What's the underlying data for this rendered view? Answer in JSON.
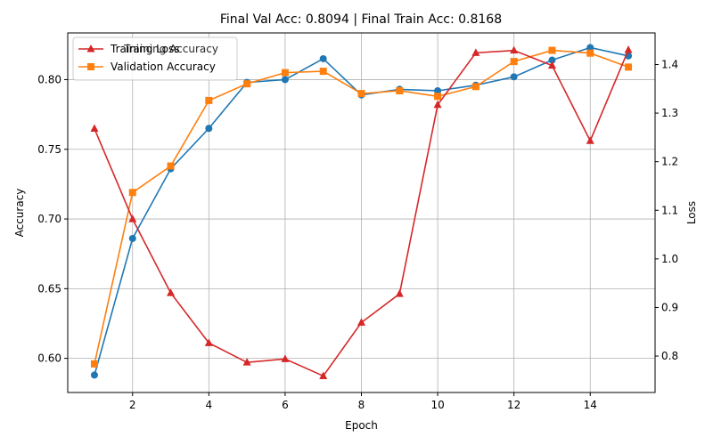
{
  "chart_data": {
    "type": "line",
    "title": "Final Val Acc: 0.8094 | Final Train Acc: 0.8168",
    "xlabel": "Epoch",
    "ylabel_left": "Accuracy",
    "ylabel_right": "Loss",
    "x": [
      1,
      2,
      3,
      4,
      5,
      6,
      7,
      8,
      9,
      10,
      11,
      12,
      13,
      14,
      15
    ],
    "xlim": [
      0.3,
      15.7
    ],
    "xticks": [
      2,
      4,
      6,
      8,
      10,
      12,
      14
    ],
    "ylim_left": [
      0.5755,
      0.8335
    ],
    "yticks_left": [
      0.6,
      0.65,
      0.7,
      0.75,
      0.8
    ],
    "ylim_right": [
      0.725,
      1.465
    ],
    "yticks_right": [
      0.8,
      0.9,
      1.0,
      1.1,
      1.2,
      1.3,
      1.4
    ],
    "grid": true,
    "legend_position": "top-left",
    "series": [
      {
        "name": "Training Accuracy",
        "axis": "left",
        "color": "#1f77b4",
        "marker": "circle",
        "values": [
          0.588,
          0.686,
          0.736,
          0.765,
          0.798,
          0.8,
          0.815,
          0.789,
          0.793,
          0.792,
          0.796,
          0.802,
          0.814,
          0.823,
          0.817
        ]
      },
      {
        "name": "Validation Accuracy",
        "axis": "left",
        "color": "#ff7f0e",
        "marker": "square",
        "values": [
          0.596,
          0.719,
          0.738,
          0.785,
          0.797,
          0.805,
          0.806,
          0.79,
          0.792,
          0.788,
          0.795,
          0.813,
          0.821,
          0.819,
          0.809
        ]
      },
      {
        "name": "Training Loss",
        "axis": "right",
        "color": "#d62728",
        "marker": "triangle",
        "values": [
          1.268,
          1.082,
          0.93,
          0.827,
          0.787,
          0.794,
          0.759,
          0.869,
          0.928,
          1.317,
          1.424,
          1.429,
          1.398,
          1.243,
          1.43
        ]
      }
    ],
    "legend_order": [
      "Training Loss",
      "Validation Accuracy"
    ],
    "legend_hidden_text": "Training Accuracy"
  }
}
